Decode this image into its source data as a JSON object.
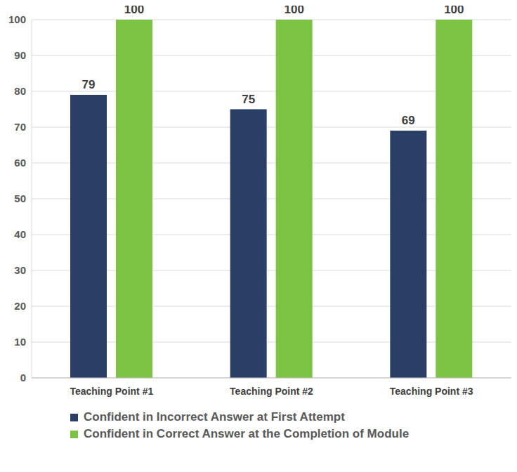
{
  "chart_data": {
    "type": "bar",
    "categories": [
      "Teaching Point #1",
      "Teaching Point #2",
      "Teaching Point #3"
    ],
    "series": [
      {
        "name": "Confident in Incorrect Answer at First Attempt",
        "color": "#2a3f66",
        "values": [
          79,
          75,
          69
        ]
      },
      {
        "name": "Confident in Correct Answer at the Completion of Module",
        "color": "#7cc243",
        "values": [
          100,
          100,
          100
        ]
      }
    ],
    "ylim": [
      0,
      100
    ],
    "yticks": [
      0,
      10,
      20,
      30,
      40,
      50,
      60,
      70,
      80,
      90,
      100
    ],
    "grid": true,
    "data_labels": true,
    "legend": "bottom"
  }
}
